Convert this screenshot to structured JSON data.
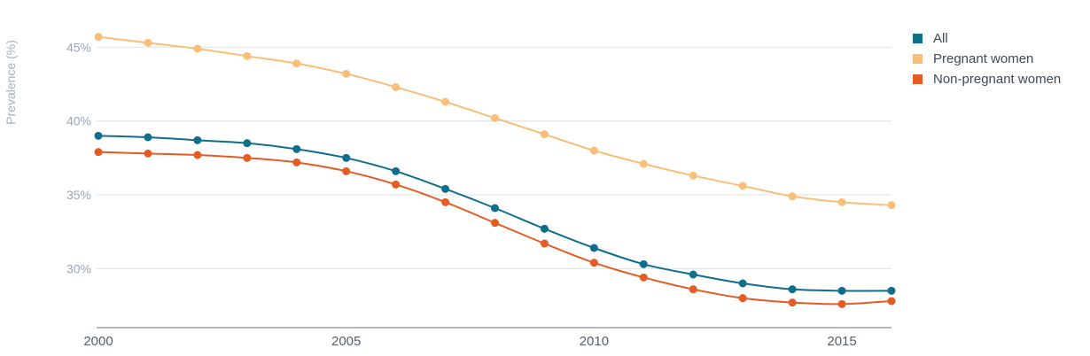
{
  "chart_data": {
    "type": "line",
    "ylabel": "Prevalence (%)",
    "xlabel": "",
    "x": [
      2000,
      2001,
      2002,
      2003,
      2004,
      2005,
      2006,
      2007,
      2008,
      2009,
      2010,
      2011,
      2012,
      2013,
      2014,
      2015,
      2016
    ],
    "xticks": [
      "2000",
      "2005",
      "2010",
      "2015"
    ],
    "yticks": [
      "30%",
      "35%",
      "40%",
      "45%"
    ],
    "ylim": [
      26,
      47
    ],
    "grid": true,
    "legend_position": "top-right",
    "series": [
      {
        "name": "All",
        "color": "#0e6e8c",
        "values": [
          39.0,
          38.9,
          38.7,
          38.5,
          38.1,
          37.5,
          36.6,
          35.4,
          34.1,
          32.7,
          31.4,
          30.3,
          29.6,
          29.0,
          28.6,
          28.5,
          28.5
        ]
      },
      {
        "name": "Pregnant women",
        "color": "#f9be78",
        "values": [
          45.7,
          45.3,
          44.9,
          44.4,
          43.9,
          43.2,
          42.3,
          41.3,
          40.2,
          39.1,
          38.0,
          37.1,
          36.3,
          35.6,
          34.9,
          34.5,
          34.3
        ]
      },
      {
        "name": "Non-pregnant women",
        "color": "#e45b23",
        "values": [
          37.9,
          37.8,
          37.7,
          37.5,
          37.2,
          36.6,
          35.7,
          34.5,
          33.1,
          31.7,
          30.4,
          29.4,
          28.6,
          28.0,
          27.7,
          27.6,
          27.8
        ]
      }
    ]
  }
}
